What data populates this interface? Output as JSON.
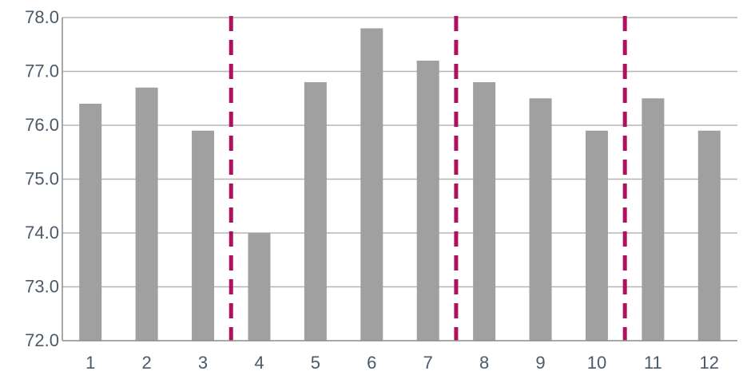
{
  "chart_data": {
    "type": "bar",
    "categories": [
      "1",
      "2",
      "3",
      "4",
      "5",
      "6",
      "7",
      "8",
      "9",
      "10",
      "11",
      "12"
    ],
    "values": [
      76.4,
      76.7,
      75.9,
      74.0,
      76.8,
      77.8,
      77.2,
      76.8,
      76.5,
      75.9,
      76.5,
      75.9
    ],
    "ylim": [
      72.0,
      78.0
    ],
    "yticks": [
      "72.0",
      "73.0",
      "74.0",
      "75.0",
      "76.0",
      "77.0",
      "78.0"
    ],
    "grid": true,
    "reference_lines": [
      {
        "orientation": "vertical",
        "between_categories": [
          "3",
          "4"
        ],
        "style": "dashed"
      },
      {
        "orientation": "vertical",
        "between_categories": [
          "7",
          "8"
        ],
        "style": "dashed"
      },
      {
        "orientation": "vertical",
        "between_categories": [
          "10",
          "11"
        ],
        "style": "dashed"
      }
    ],
    "colors": {
      "bar": "#a0a0a0",
      "reference_line": "#b0105e",
      "grid": "#b5b5b5",
      "axis": "#8c8c8c",
      "tick_text": "#4a5a6a"
    }
  }
}
